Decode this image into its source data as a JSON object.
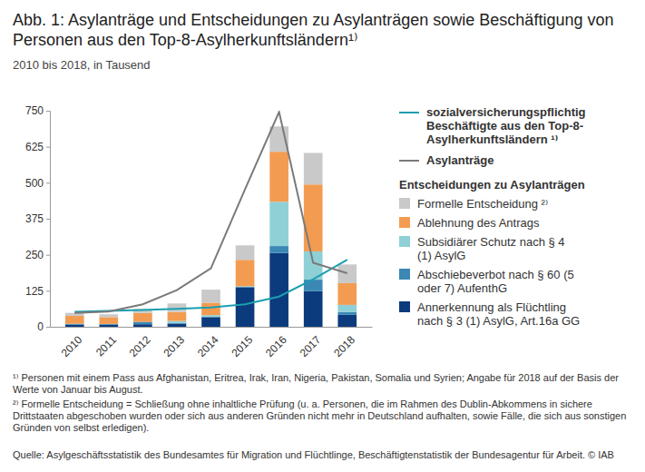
{
  "chart_data": {
    "type": "bar",
    "title": "Abb. 1: Asylanträge und Entscheidungen zu Asylanträgen sowie Beschäftigung von Personen aus den Top-8-Asylherkunftsländern¹⁾",
    "subtitle": "2010 bis 2018, in Tausend",
    "categories": [
      "2010",
      "2011",
      "2012",
      "2013",
      "2014",
      "2015",
      "2016",
      "2017",
      "2018"
    ],
    "stacked": true,
    "grid": false,
    "legend": "right",
    "legend_title": "Entscheidungen zu Asylanträgen",
    "ylim": [
      0,
      750
    ],
    "yticks": [
      0,
      125,
      250,
      375,
      500,
      625,
      750
    ],
    "series": [
      {
        "name": "Annerkennung als Flüchtling nach § 3 (1) AsylG, Art.16a GG",
        "type": "bar",
        "color": "#0b3b7c",
        "values": [
          7.7,
          7.1,
          8.8,
          10.9,
          33.3,
          137.1,
          256.1,
          123.9,
          41.4
        ]
      },
      {
        "name": "Abschiebeverbot nach § 60 (5 oder 7) AufenthG",
        "type": "bar",
        "color": "#3b88b5",
        "values": [
          2.7,
          2.6,
          8.4,
          2.2,
          2.1,
          2.1,
          24.1,
          39.7,
          9.5
        ]
      },
      {
        "name": "Subsidiärer Schutz nach § 4 (1) AsylG",
        "type": "bar",
        "color": "#8ed0d6",
        "values": [
          0,
          0,
          0,
          7.0,
          5.2,
          1.7,
          153.7,
          98.1,
          25.1
        ]
      },
      {
        "name": "Ablehnung des Antrags",
        "type": "bar",
        "color": "#f39c51",
        "values": [
          27.3,
          23.7,
          30.7,
          31.1,
          43.0,
          91.5,
          173.8,
          232.3,
          75.4
        ]
      },
      {
        "name": "Formelle Entscheidung ²⁾",
        "type": "bar",
        "color": "#c9c9c9",
        "values": [
          10.5,
          10.0,
          14.0,
          29.7,
          45.3,
          50.3,
          87.9,
          109.5,
          64.9
        ]
      },
      {
        "name": "sozialversicherungspflichtig Beschäftigte aus den Top-8-Asylherkunftsländern ¹⁾",
        "type": "line",
        "color": "#1b9eb0",
        "values": [
          52,
          55,
          58,
          62,
          67,
          78,
          105,
          165,
          233
        ]
      },
      {
        "name": "Asylanträge",
        "type": "line",
        "color": "#7a7a7a",
        "values": [
          48,
          53,
          78,
          127,
          203,
          477,
          746,
          222,
          186
        ]
      }
    ],
    "notes": [
      "¹⁾ Personen mit einem Pass aus Afghanistan, Eritrea, Irak, Iran, Nigeria, Pakistan, Somalia und Syrien; Angabe für 2018 auf der Basis der Werte von Januar bis August.",
      "²⁾ Formelle Entscheidung = Schließung ohne inhaltliche Prüfung (u. a. Personen, die im Rahmen des Dublin-Abkommens in sichere Drittstaaten abgeschoben wurden oder sich aus anderen Gründen nicht mehr in Deutschland aufhalten, sowie Fälle, die sich aus sonstigen Gründen von selbst erledigen)."
    ],
    "source": "Quelle: Asylgeschäftsstatistik des Bundesamtes für Migration und Flüchtlinge, Beschäftigtenstatistik der Bundesagentur für Arbeit. © IAB"
  }
}
